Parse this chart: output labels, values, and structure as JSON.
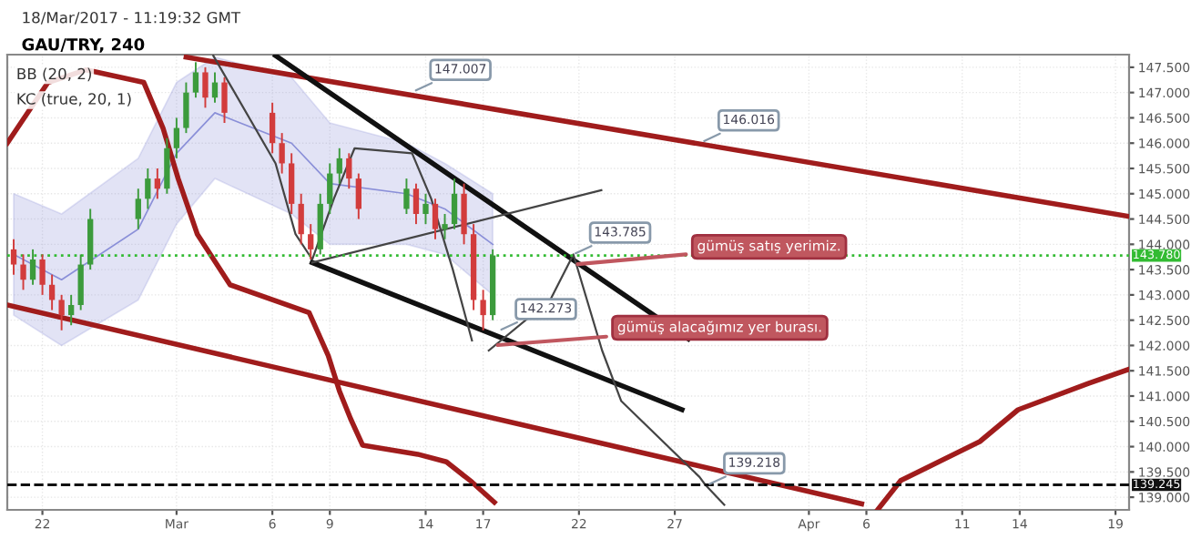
{
  "chart_data": {
    "type": "candlestick",
    "title": "GAU/TRY, 240",
    "subtitle": "18/Mar/2017 - 11:19:32 GMT",
    "x": [
      "2017-02-20T12:00",
      "2017-02-21T00:00",
      "2017-02-21T12:00",
      "2017-02-22T00:00",
      "2017-02-22T12:00",
      "2017-02-23T00:00",
      "2017-02-23T12:00",
      "2017-02-24T00:00",
      "2017-02-24T12:00",
      "2017-02-27T00:00",
      "2017-02-27T12:00",
      "2017-02-28T00:00",
      "2017-02-28T12:00",
      "2017-03-01T00:00",
      "2017-03-01T12:00",
      "2017-03-02T00:00",
      "2017-03-02T12:00",
      "2017-03-03T00:00",
      "2017-03-03T12:00",
      "2017-03-06T00:00",
      "2017-03-06T12:00",
      "2017-03-07T00:00",
      "2017-03-07T12:00",
      "2017-03-08T00:00",
      "2017-03-08T12:00",
      "2017-03-09T00:00",
      "2017-03-09T12:00",
      "2017-03-10T00:00",
      "2017-03-10T12:00",
      "2017-03-13T00:00",
      "2017-03-13T12:00",
      "2017-03-14T00:00",
      "2017-03-14T12:00",
      "2017-03-15T00:00",
      "2017-03-15T12:00",
      "2017-03-16T00:00",
      "2017-03-16T12:00",
      "2017-03-17T00:00",
      "2017-03-17T12:00"
    ],
    "ohlc": [
      [
        143.9,
        144.1,
        143.4,
        143.6
      ],
      [
        143.6,
        143.8,
        143.1,
        143.3
      ],
      [
        143.3,
        143.9,
        143.2,
        143.7
      ],
      [
        143.7,
        143.8,
        143.0,
        143.2
      ],
      [
        143.2,
        143.4,
        142.7,
        142.9
      ],
      [
        142.9,
        143.0,
        142.3,
        142.6
      ],
      [
        142.6,
        143.0,
        142.4,
        142.8
      ],
      [
        142.8,
        143.8,
        142.7,
        143.6
      ],
      [
        143.6,
        144.7,
        143.5,
        144.5
      ],
      [
        144.5,
        145.1,
        144.3,
        144.9
      ],
      [
        144.9,
        145.5,
        144.7,
        145.3
      ],
      [
        145.3,
        145.5,
        144.9,
        145.1
      ],
      [
        145.1,
        146.1,
        145.0,
        145.9
      ],
      [
        145.9,
        146.5,
        145.7,
        146.3
      ],
      [
        146.3,
        147.2,
        146.2,
        147.0
      ],
      [
        147.0,
        147.6,
        146.9,
        147.4
      ],
      [
        147.4,
        147.5,
        146.7,
        146.9
      ],
      [
        146.9,
        147.4,
        146.8,
        147.2
      ],
      [
        147.2,
        147.3,
        146.4,
        146.6
      ],
      [
        146.6,
        146.8,
        145.8,
        146.0
      ],
      [
        146.0,
        146.2,
        145.4,
        145.6
      ],
      [
        145.6,
        145.8,
        144.6,
        144.8
      ],
      [
        144.8,
        145.0,
        144.0,
        144.2
      ],
      [
        144.2,
        144.4,
        143.7,
        143.9
      ],
      [
        143.9,
        145.0,
        143.8,
        144.8
      ],
      [
        144.8,
        145.6,
        144.6,
        145.4
      ],
      [
        145.4,
        145.9,
        145.2,
        145.7
      ],
      [
        145.7,
        145.8,
        145.1,
        145.3
      ],
      [
        145.3,
        145.4,
        144.5,
        144.7
      ],
      [
        144.7,
        145.3,
        144.6,
        145.1
      ],
      [
        145.1,
        145.2,
        144.4,
        144.6
      ],
      [
        144.6,
        145.0,
        144.4,
        144.8
      ],
      [
        144.8,
        144.9,
        144.1,
        144.3
      ],
      [
        144.3,
        144.6,
        144.1,
        144.4
      ],
      [
        144.4,
        145.3,
        144.3,
        145.0
      ],
      [
        145.0,
        145.2,
        144.0,
        144.2
      ],
      [
        144.2,
        144.4,
        142.7,
        142.9
      ],
      [
        142.9,
        143.1,
        142.3,
        142.6
      ],
      [
        142.6,
        143.9,
        142.5,
        143.78
      ]
    ],
    "colors": [
      "#d23c3c",
      "#d23c3c",
      "#3c9b3c",
      "#d23c3c",
      "#d23c3c",
      "#d23c3c",
      "#3c9b3c",
      "#3c9b3c",
      "#3c9b3c",
      "#3c9b3c",
      "#3c9b3c",
      "#d23c3c",
      "#3c9b3c",
      "#3c9b3c",
      "#3c9b3c",
      "#3c9b3c",
      "#d23c3c",
      "#3c9b3c",
      "#d23c3c",
      "#d23c3c",
      "#d23c3c",
      "#d23c3c",
      "#d23c3c",
      "#d23c3c",
      "#3c9b3c",
      "#3c9b3c",
      "#3c9b3c",
      "#d23c3c",
      "#d23c3c",
      "#3c9b3c",
      "#d23c3c",
      "#3c9b3c",
      "#d23c3c",
      "#3c9b3c",
      "#3c9b3c",
      "#d23c3c",
      "#d23c3c",
      "#d23c3c",
      "#3c9b3c"
    ],
    "series": [
      {
        "type": "line",
        "color": "#8a8fd8",
        "x": [
          "2017-02-20T12:00",
          "2017-02-23T00:00",
          "2017-02-27T00:00",
          "2017-03-01T00:00",
          "2017-03-03T00:00",
          "2017-03-07T00:00",
          "2017-03-09T00:00",
          "2017-03-13T00:00",
          "2017-03-15T00:00",
          "2017-03-17T12:00"
        ],
        "values": [
          143.8,
          143.3,
          144.3,
          145.8,
          146.6,
          146.0,
          145.2,
          145.0,
          144.7,
          144.0
        ],
        "lower": [
          142.6,
          142.0,
          142.9,
          144.4,
          145.3,
          144.6,
          144.0,
          144.0,
          143.8,
          143.0
        ],
        "upper": [
          145.0,
          144.6,
          145.7,
          147.2,
          147.7,
          147.3,
          146.4,
          146.0,
          145.6,
          145.0
        ]
      },
      {
        "type": "line",
        "color": "#a01c1c",
        "x": [
          "2017-03-01T12:00",
          "2017-04-19T17:00"
        ],
        "values": [
          147.7,
          144.55
        ]
      },
      {
        "type": "line",
        "color": "#a01c1c",
        "x": [
          "2017-02-20T04:00",
          "2017-04-05T18:00"
        ],
        "values": [
          142.8,
          138.87
        ]
      },
      {
        "type": "line",
        "color": "#a01c1c",
        "x": [
          "2017-02-20T04:00",
          "2017-02-22T07:00",
          "2017-02-24T07:00",
          "2017-02-27T07:00",
          "2017-02-28T07:00",
          "2017-03-01T02:00",
          "2017-03-02T02:00",
          "2017-03-03T19:00",
          "2017-03-07T22:00",
          "2017-03-08T22:00",
          "2017-03-09T12:00",
          "2017-03-10T02:00",
          "2017-03-10T17:00",
          "2017-03-13T14:00",
          "2017-03-15T02:00",
          "2017-03-16T10:00",
          "2017-03-17T14:00"
        ],
        "values": [
          146.0,
          147.2,
          147.45,
          147.2,
          146.3,
          145.3,
          144.2,
          143.2,
          142.65,
          141.8,
          141.1,
          140.55,
          140.03,
          139.85,
          139.7,
          139.3,
          138.9
        ]
      },
      {
        "type": "line",
        "color": "#a01c1c",
        "x": [
          "2017-04-06T14:00",
          "2017-04-07T19:00",
          "2017-04-11T22:00",
          "2017-04-13T22:00",
          "2017-04-17T14:00",
          "2017-04-19T17:00"
        ],
        "values": [
          138.75,
          139.33,
          140.1,
          140.73,
          141.25,
          141.53
        ]
      },
      {
        "type": "line",
        "color": "#111111",
        "x": [
          "2017-03-06T04:00",
          "2017-03-27T17:00"
        ],
        "values": [
          147.73,
          142.13
        ]
      },
      {
        "type": "line",
        "color": "#111111",
        "x": [
          "2017-03-08T02:00",
          "2017-03-27T09:00"
        ],
        "values": [
          143.64,
          140.73
        ]
      },
      {
        "type": "line",
        "color": "#444444",
        "x": [
          "2017-03-08T02:00",
          "2017-03-23T04:00"
        ],
        "values": [
          143.64,
          145.07
        ]
      },
      {
        "type": "line",
        "color": "#444444",
        "x": [
          "2017-03-02T22:00",
          "2017-03-06T04:00",
          "2017-03-07T05:00",
          "2017-03-08T02:00",
          "2017-03-09T05:00",
          "2017-03-10T07:00",
          "2017-03-13T07:00",
          "2017-03-14T07:00",
          "2017-03-15T10:00",
          "2017-03-16T10:00"
        ],
        "values": [
          147.73,
          145.6,
          144.2,
          143.7,
          144.9,
          145.9,
          145.8,
          144.9,
          143.5,
          142.1
        ]
      },
      {
        "type": "line",
        "color": "#444444",
        "x": [
          "2017-03-17T07:00",
          "2017-03-20T12:00",
          "2017-03-21T17:00",
          "2017-03-23T05:00",
          "2017-03-24T05:00",
          "2017-03-28T07:00",
          "2017-03-28T14:00",
          "2017-03-29T14:00"
        ],
        "values": [
          141.9,
          142.9,
          143.8,
          141.9,
          140.9,
          139.4,
          139.25,
          138.85
        ]
      }
    ],
    "xlim": [
      "2017-02-20T04:00",
      "2017-04-19T17:00"
    ],
    "ylim": [
      138.75,
      147.75
    ],
    "xticks": [
      {
        "value": "2017-02-22",
        "label": "22"
      },
      {
        "value": "2017-03-01",
        "label": "Mar"
      },
      {
        "value": "2017-03-06",
        "label": "6"
      },
      {
        "value": "2017-03-09",
        "label": "9"
      },
      {
        "value": "2017-03-14",
        "label": "14"
      },
      {
        "value": "2017-03-17",
        "label": "17"
      },
      {
        "value": "2017-03-22",
        "label": "22"
      },
      {
        "value": "2017-03-27",
        "label": "27"
      },
      {
        "value": "2017-04-03",
        "label": "Apr"
      },
      {
        "value": "2017-04-06",
        "label": "6"
      },
      {
        "value": "2017-04-11",
        "label": "11"
      },
      {
        "value": "2017-04-14",
        "label": "14"
      },
      {
        "value": "2017-04-19",
        "label": "19"
      }
    ],
    "yticks": [
      {
        "value": 139,
        "label": "139.000"
      },
      {
        "value": 139.5,
        "label": "139.500"
      },
      {
        "value": 140,
        "label": "140.000"
      },
      {
        "value": 140.5,
        "label": "140.500"
      },
      {
        "value": 141,
        "label": "141.000"
      },
      {
        "value": 141.5,
        "label": "141.500"
      },
      {
        "value": 142,
        "label": "142.000"
      },
      {
        "value": 142.5,
        "label": "142.500"
      },
      {
        "value": 143,
        "label": "143.000"
      },
      {
        "value": 143.5,
        "label": "143.500"
      },
      {
        "value": 144,
        "label": "144.000"
      },
      {
        "value": 144.5,
        "label": "144.500"
      },
      {
        "value": 145,
        "label": "145.000"
      },
      {
        "value": 145.5,
        "label": "145.500"
      },
      {
        "value": 146,
        "label": "146.000"
      },
      {
        "value": 146.5,
        "label": "146.500"
      },
      {
        "value": 147,
        "label": "147.000"
      },
      {
        "value": 147.5,
        "label": "147.500"
      }
    ],
    "ref_lines": [
      {
        "axis": "y",
        "value": 143.78,
        "label": "143.780",
        "color": "#33bb33",
        "line_style": "dotted"
      },
      {
        "axis": "y",
        "value": 139.245,
        "label": "139.245",
        "color": "#111111",
        "line_style": "dashed"
      }
    ],
    "annotations": [
      "BB (20, 2)",
      "KC (true, 20, 1)",
      {
        "text": "147.007",
        "x": "2017-03-13T06:00",
        "y": 147.0
      },
      {
        "text": "146.016",
        "x": "2017-03-28T07:00",
        "y": 146.0
      },
      {
        "text": "143.785",
        "x": "2017-03-21T14:00",
        "y": 143.78
      },
      {
        "text": "142.273",
        "x": "2017-03-17T17:00",
        "y": 142.27
      },
      {
        "text": "139.218",
        "x": "2017-03-28T14:00",
        "y": 139.22
      },
      {
        "text": "gümüş satış yerimiz.",
        "x": "2017-03-21T16:00",
        "y": 143.6
      },
      {
        "text": "gümüş alacağımız yer burası.",
        "x": "2017-03-17T12:00",
        "y": 142.0
      }
    ],
    "grid": true,
    "legend": false
  }
}
